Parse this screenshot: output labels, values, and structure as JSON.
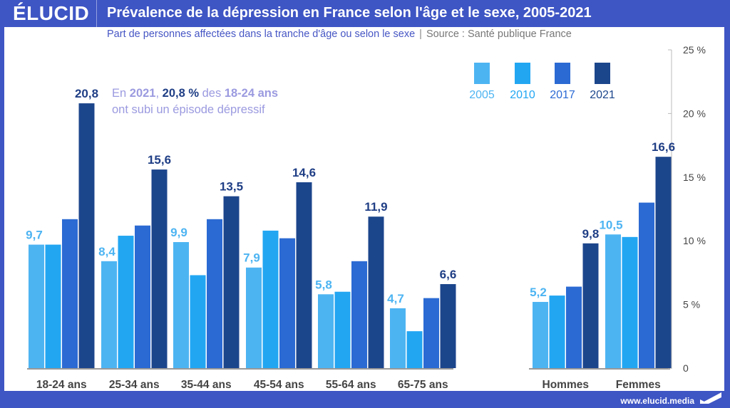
{
  "header": {
    "logo": "ÉLUCID",
    "title": "Prévalence de la dépression en France selon l'âge et le sexe, 2005-2021"
  },
  "subtitle": {
    "description": "Part de personnes affectées dans la tranche d'âge ou selon le sexe",
    "separator": "|",
    "source": "Source : Santé publique France"
  },
  "annotation": {
    "line1_parts": [
      "En ",
      "2021",
      ", ",
      "20,8 %",
      " des ",
      "18-24 ans"
    ],
    "line2": "ont subi un épisode dépressif"
  },
  "footer": {
    "url": "www.elucid.media"
  },
  "colors": {
    "2005": "#4db4f2",
    "2010": "#22a6f2",
    "2017": "#2b6ad3",
    "2021": "#1c468c",
    "axis": "#999999",
    "label_light": "#4db4f2",
    "label_dark": "#1f3e85"
  },
  "chart_data": {
    "type": "bar",
    "title": "Prévalence de la dépression en France selon l'âge et le sexe, 2005-2021",
    "xlabel": "",
    "ylabel": "",
    "ylim": [
      0,
      25
    ],
    "yticks": [
      0,
      5,
      10,
      15,
      20,
      25
    ],
    "ytick_labels": [
      "0",
      "5 %",
      "10 %",
      "15 %",
      "20 %",
      "25 %"
    ],
    "y_axis_position": "right",
    "grid": false,
    "legend": {
      "placement": "top-right",
      "entries": [
        "2005",
        "2010",
        "2017",
        "2021"
      ]
    },
    "categories": [
      "18-24 ans",
      "25-34 ans",
      "35-44 ans",
      "45-54 ans",
      "55-64 ans",
      "65-75 ans",
      "Hommes",
      "Femmes"
    ],
    "category_groups": [
      {
        "name": "age",
        "categories": [
          "18-24 ans",
          "25-34 ans",
          "35-44 ans",
          "45-54 ans",
          "55-64 ans",
          "65-75 ans"
        ]
      },
      {
        "name": "sexe",
        "categories": [
          "Hommes",
          "Femmes"
        ]
      }
    ],
    "series": [
      {
        "name": "2005",
        "values": [
          9.7,
          8.4,
          9.9,
          7.9,
          5.8,
          4.7,
          5.2,
          10.5
        ],
        "labeled": true
      },
      {
        "name": "2010",
        "values": [
          9.7,
          10.4,
          7.3,
          10.8,
          6.0,
          2.9,
          5.7,
          10.3
        ],
        "labeled": false
      },
      {
        "name": "2017",
        "values": [
          11.7,
          11.2,
          11.7,
          10.2,
          8.4,
          5.5,
          6.4,
          13.0
        ],
        "labeled": false
      },
      {
        "name": "2021",
        "values": [
          20.8,
          15.6,
          13.5,
          14.6,
          11.9,
          6.6,
          9.8,
          16.6
        ],
        "labeled": true
      }
    ],
    "data_labels": {
      "2005": [
        "9,7",
        "8,4",
        "9,9",
        "7,9",
        "5,8",
        "4,7",
        "5,2",
        "10,5"
      ],
      "2021": [
        "20,8",
        "15,6",
        "13,5",
        "14,6",
        "11,9",
        "6,6",
        "9,8",
        "16,6"
      ]
    }
  }
}
